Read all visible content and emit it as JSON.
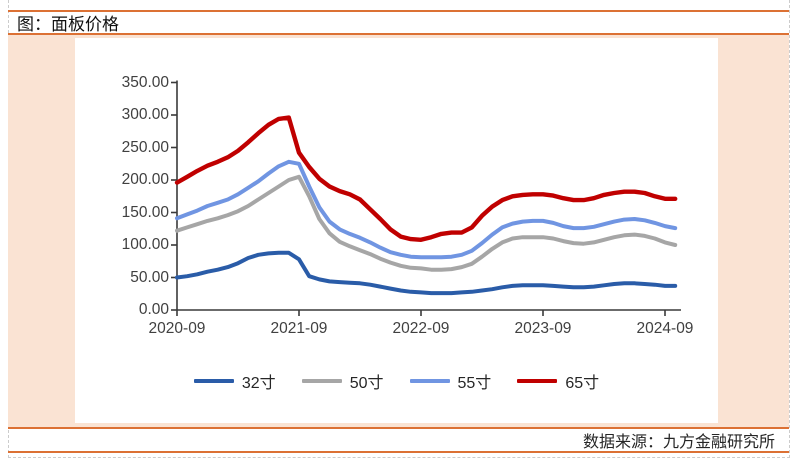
{
  "header": {
    "title": "图：面板价格"
  },
  "footer": {
    "source_label": "数据来源：九方金融研究所"
  },
  "colors": {
    "accent_orange": "#DC7134",
    "band_background": "#FAE3D3",
    "axis": "#3A3A3A",
    "axis_text": "#404040"
  },
  "chart_data": {
    "type": "line",
    "title": "面板价格",
    "xlabel": "",
    "ylabel": "",
    "ylim": [
      0,
      350
    ],
    "grid": false,
    "legend_position": "bottom",
    "x_start": "2020-09",
    "x_end": "2024-10",
    "x_unit": "month",
    "x_tick_labels": [
      "2020-09",
      "2021-09",
      "2022-09",
      "2023-09",
      "2024-09"
    ],
    "y_tick_labels": [
      "0.00",
      "50.00",
      "100.00",
      "150.00",
      "200.00",
      "250.00",
      "300.00",
      "350.00"
    ],
    "series": [
      {
        "name": "32寸",
        "color": "#2A5CA8",
        "values": [
          50,
          52,
          55,
          59,
          62,
          66,
          72,
          80,
          85,
          87,
          88,
          88,
          78,
          52,
          47,
          44,
          43,
          42,
          41,
          39,
          36,
          33,
          30,
          28,
          27,
          26,
          26,
          26,
          27,
          28,
          30,
          32,
          35,
          37,
          38,
          38,
          38,
          37,
          36,
          35,
          35,
          36,
          38,
          40,
          41,
          41,
          40,
          39,
          37,
          37
        ]
      },
      {
        "name": "50寸",
        "color": "#A6A6A6",
        "values": [
          122,
          127,
          132,
          137,
          141,
          146,
          152,
          160,
          170,
          180,
          190,
          200,
          205,
          175,
          140,
          118,
          105,
          98,
          92,
          86,
          79,
          73,
          68,
          65,
          64,
          62,
          62,
          63,
          66,
          71,
          82,
          94,
          104,
          110,
          112,
          112,
          112,
          110,
          106,
          103,
          102,
          104,
          108,
          112,
          115,
          116,
          114,
          110,
          104,
          100
        ]
      },
      {
        "name": "55寸",
        "color": "#7095E2",
        "values": [
          141,
          147,
          153,
          160,
          165,
          170,
          178,
          188,
          198,
          210,
          221,
          228,
          225,
          190,
          158,
          136,
          124,
          117,
          111,
          104,
          96,
          89,
          85,
          82,
          81,
          81,
          81,
          82,
          85,
          91,
          103,
          116,
          127,
          133,
          136,
          137,
          137,
          134,
          129,
          126,
          126,
          128,
          132,
          136,
          139,
          140,
          138,
          134,
          129,
          126
        ]
      },
      {
        "name": "65寸",
        "color": "#C00000",
        "values": [
          196,
          205,
          214,
          222,
          228,
          235,
          245,
          258,
          272,
          285,
          294,
          296,
          242,
          220,
          202,
          190,
          183,
          178,
          170,
          155,
          140,
          124,
          113,
          109,
          108,
          112,
          117,
          119,
          119,
          127,
          145,
          159,
          169,
          175,
          177,
          178,
          178,
          176,
          172,
          169,
          169,
          172,
          177,
          180,
          182,
          182,
          180,
          175,
          171,
          171
        ]
      }
    ]
  }
}
